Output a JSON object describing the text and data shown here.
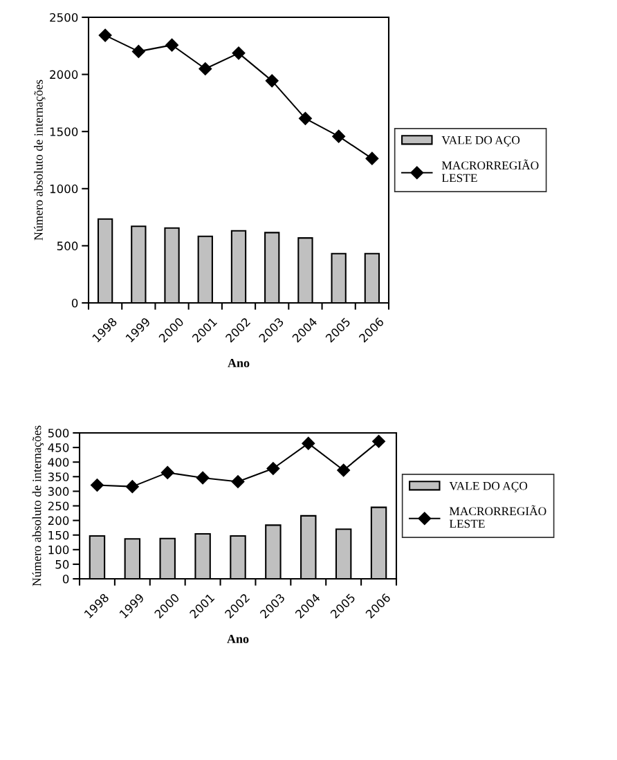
{
  "chart_data": [
    {
      "type": "bar",
      "xlabel": "Ano",
      "ylabel": "Número absoluto de internações",
      "categories": [
        "1998",
        "1999",
        "2000",
        "2001",
        "2002",
        "2003",
        "2004",
        "2005",
        "2006"
      ],
      "series": [
        {
          "name": "VALE DO AÇO",
          "color": "#c0c0c0",
          "values": [
            734,
            670,
            655,
            583,
            631,
            615,
            568,
            431,
            431
          ]
        },
        {
          "name": "MACRORREGIÃO LESTE",
          "type": "line",
          "color": "#000000",
          "marker": "diamond",
          "line_style": "solid",
          "values": [
            2342,
            2201,
            2257,
            2049,
            2186,
            1944,
            1614,
            1458,
            1264
          ]
        }
      ],
      "ylim": [
        0,
        2500
      ],
      "yticks": [
        0,
        500,
        1000,
        1500,
        2000,
        2500
      ],
      "grid": false,
      "legend": "right"
    },
    {
      "type": "bar",
      "xlabel": "Ano",
      "ylabel": "Número absoluto de internações",
      "categories": [
        "1998",
        "1999",
        "2000",
        "2001",
        "2002",
        "2003",
        "2004",
        "2005",
        "2006"
      ],
      "series": [
        {
          "name": "VALE DO AÇO",
          "color": "#c0c0c0",
          "values": [
            147,
            137,
            138,
            154,
            147,
            184,
            216,
            170,
            245
          ]
        },
        {
          "name": "MACRORREGIÃO LESTE",
          "type": "line",
          "color": "#000000",
          "marker": "diamond",
          "line_style": "solid",
          "values": [
            321,
            316,
            364,
            346,
            333,
            378,
            464,
            372,
            471
          ]
        }
      ],
      "ylim": [
        0,
        500
      ],
      "yticks": [
        0,
        50,
        100,
        150,
        200,
        250,
        300,
        350,
        400,
        450,
        500
      ],
      "grid": false,
      "legend": "right"
    }
  ]
}
